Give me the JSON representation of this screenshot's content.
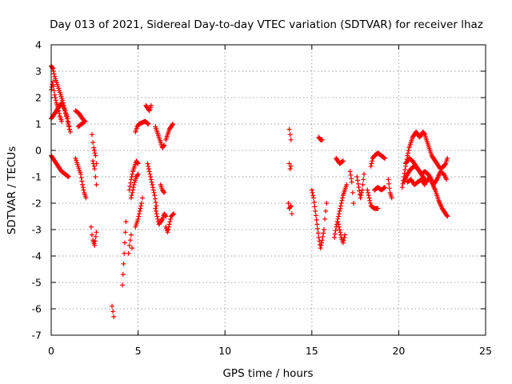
{
  "chart_data": {
    "type": "scatter",
    "title": "Day 013 of 2021, Sidereal Day-to-day VTEC variation (SDTVAR) for receiver lhaz",
    "xlabel": "GPS time / hours",
    "ylabel": "SDTVAR / TECUs",
    "xlim": [
      0,
      25
    ],
    "ylim": [
      -7,
      4
    ],
    "xticks": [
      "0",
      "5",
      "10",
      "15",
      "20",
      "25"
    ],
    "yticks": [
      "4",
      "3",
      "2",
      "1",
      "0",
      "-1",
      "-2",
      "-3",
      "-4",
      "-5",
      "-6",
      "-7"
    ],
    "grid": true,
    "marker": "plus",
    "color": "#ff0000",
    "segments": [
      [
        [
          0.0,
          3.2
        ],
        [
          0.1,
          3.1
        ],
        [
          0.2,
          2.8
        ],
        [
          0.35,
          2.5
        ],
        [
          0.5,
          2.2
        ],
        [
          0.65,
          1.9
        ],
        [
          0.8,
          1.5
        ],
        [
          0.95,
          1.2
        ],
        [
          1.05,
          0.8
        ]
      ],
      [
        [
          0.0,
          2.3
        ],
        [
          0.1,
          2.6
        ],
        [
          0.2,
          2.1
        ],
        [
          0.3,
          1.8
        ],
        [
          0.4,
          1.6
        ],
        [
          0.5,
          1.3
        ],
        [
          0.6,
          1.1
        ]
      ],
      [
        [
          0.0,
          1.2
        ],
        [
          0.2,
          1.4
        ],
        [
          0.4,
          1.6
        ],
        [
          0.6,
          1.8
        ],
        [
          0.8,
          1.5
        ],
        [
          0.95,
          1.1
        ],
        [
          1.1,
          0.7
        ]
      ],
      [
        [
          0.0,
          -0.2
        ],
        [
          0.2,
          -0.4
        ],
        [
          0.4,
          -0.6
        ],
        [
          0.6,
          -0.8
        ],
        [
          0.8,
          -0.9
        ],
        [
          1.0,
          -1.0
        ]
      ],
      [
        [
          1.4,
          1.5
        ],
        [
          1.6,
          1.4
        ],
        [
          1.8,
          1.2
        ],
        [
          1.95,
          1.1
        ],
        [
          1.55,
          0.9
        ]
      ],
      [
        [
          1.4,
          -0.3
        ],
        [
          1.55,
          -0.6
        ],
        [
          1.7,
          -0.9
        ],
        [
          1.8,
          -1.3
        ],
        [
          1.9,
          -1.6
        ],
        [
          2.0,
          -1.8
        ]
      ],
      [
        [
          2.35,
          0.6
        ],
        [
          2.4,
          0.3
        ],
        [
          2.45,
          0.1
        ],
        [
          2.55,
          -0.2
        ],
        [
          2.6,
          -0.5
        ]
      ],
      [
        [
          2.4,
          -0.4
        ],
        [
          2.5,
          -0.7
        ],
        [
          2.55,
          -1.0
        ],
        [
          2.6,
          -1.3
        ]
      ],
      [
        [
          2.3,
          -2.9
        ],
        [
          2.35,
          -3.2
        ],
        [
          2.4,
          -3.4
        ],
        [
          2.5,
          -3.6
        ],
        [
          2.6,
          -3.1
        ]
      ],
      [
        [
          3.5,
          -5.9
        ],
        [
          3.55,
          -6.1
        ],
        [
          3.6,
          -6.3
        ]
      ],
      [
        [
          4.1,
          -5.1
        ],
        [
          4.3,
          -2.7
        ]
      ],
      [
        [
          4.45,
          -3.9
        ],
        [
          4.5,
          -3.6
        ],
        [
          4.55,
          -3.4
        ],
        [
          4.6,
          -3.2
        ],
        [
          4.65,
          -3.7
        ]
      ],
      [
        [
          4.5,
          -1.5
        ],
        [
          4.6,
          -1.1
        ],
        [
          4.7,
          -0.8
        ],
        [
          4.8,
          -0.6
        ],
        [
          4.9,
          -0.4
        ],
        [
          5.0,
          -0.5
        ]
      ],
      [
        [
          4.6,
          -1.8
        ],
        [
          4.7,
          -1.5
        ],
        [
          4.8,
          -1.2
        ],
        [
          4.9,
          -1.0
        ],
        [
          5.0,
          -0.9
        ]
      ],
      [
        [
          4.85,
          -2.9
        ],
        [
          5.0,
          -2.6
        ],
        [
          5.1,
          -2.3
        ],
        [
          5.2,
          -2.0
        ],
        [
          5.25,
          -1.8
        ]
      ],
      [
        [
          4.85,
          0.7
        ],
        [
          4.95,
          0.9
        ],
        [
          5.05,
          1.0
        ],
        [
          5.4,
          1.1
        ],
        [
          5.6,
          1.0
        ]
      ],
      [
        [
          5.45,
          1.7
        ],
        [
          5.55,
          1.6
        ],
        [
          5.65,
          1.5
        ],
        [
          5.75,
          1.7
        ]
      ],
      [
        [
          5.55,
          -0.5
        ],
        [
          5.65,
          -0.8
        ],
        [
          5.75,
          -1.1
        ],
        [
          5.85,
          -1.4
        ],
        [
          5.95,
          -1.7
        ],
        [
          6.05,
          -2.1
        ]
      ],
      [
        [
          6.0,
          -2.2
        ],
        [
          6.1,
          -2.5
        ],
        [
          6.2,
          -2.8
        ],
        [
          6.4,
          -2.6
        ],
        [
          6.5,
          -2.4
        ],
        [
          6.6,
          -2.5
        ]
      ],
      [
        [
          6.0,
          0.9
        ],
        [
          6.1,
          0.7
        ],
        [
          6.2,
          0.5
        ],
        [
          6.3,
          0.3
        ],
        [
          6.4,
          0.1
        ],
        [
          6.5,
          0.2
        ]
      ],
      [
        [
          6.3,
          -1.3
        ],
        [
          6.4,
          -1.5
        ],
        [
          6.5,
          -1.6
        ]
      ],
      [
        [
          6.6,
          0.4
        ],
        [
          6.7,
          0.6
        ],
        [
          6.8,
          0.8
        ],
        [
          6.9,
          0.9
        ],
        [
          7.0,
          1.0
        ]
      ],
      [
        [
          6.6,
          -2.9
        ],
        [
          6.7,
          -3.1
        ],
        [
          6.8,
          -2.8
        ],
        [
          6.9,
          -2.5
        ],
        [
          7.05,
          -2.4
        ]
      ],
      [
        [
          13.7,
          0.8
        ],
        [
          13.75,
          0.6
        ],
        [
          13.8,
          0.4
        ]
      ],
      [
        [
          13.7,
          -0.5
        ],
        [
          13.75,
          -0.7
        ],
        [
          13.8,
          -0.6
        ]
      ],
      [
        [
          13.65,
          -2.0
        ],
        [
          13.7,
          -2.2
        ],
        [
          13.8,
          -2.1
        ],
        [
          13.85,
          -2.4
        ]
      ],
      [
        [
          15.0,
          -1.5
        ],
        [
          15.1,
          -1.8
        ],
        [
          15.2,
          -2.3
        ],
        [
          15.3,
          -2.8
        ],
        [
          15.4,
          -3.3
        ],
        [
          15.5,
          -3.7
        ],
        [
          15.6,
          -3.4
        ],
        [
          15.7,
          -3.0
        ],
        [
          15.75,
          -2.6
        ],
        [
          15.8,
          -2.3
        ],
        [
          15.85,
          -2.0
        ]
      ],
      [
        [
          15.4,
          0.5
        ],
        [
          15.5,
          0.4
        ],
        [
          15.6,
          0.4
        ]
      ],
      [
        [
          16.4,
          -0.3
        ],
        [
          16.6,
          -0.5
        ],
        [
          16.8,
          -0.4
        ]
      ],
      [
        [
          16.3,
          -3.3
        ],
        [
          16.4,
          -2.9
        ],
        [
          16.5,
          -2.6
        ],
        [
          16.6,
          -2.3
        ],
        [
          16.7,
          -2.0
        ],
        [
          16.8,
          -1.7
        ],
        [
          16.9,
          -1.5
        ],
        [
          17.0,
          -1.3
        ]
      ],
      [
        [
          16.5,
          -2.7
        ],
        [
          16.6,
          -3.0
        ],
        [
          16.7,
          -3.3
        ],
        [
          16.8,
          -3.5
        ],
        [
          16.9,
          -3.2
        ]
      ],
      [
        [
          17.2,
          -0.8
        ],
        [
          17.3,
          -1.2
        ],
        [
          17.35,
          -1.6
        ],
        [
          17.4,
          -2.0
        ]
      ],
      [
        [
          17.6,
          -1.0
        ],
        [
          17.7,
          -1.4
        ],
        [
          17.8,
          -1.8
        ],
        [
          17.9,
          -1.5
        ],
        [
          18.0,
          -0.9
        ]
      ],
      [
        [
          18.2,
          -1.5
        ],
        [
          18.3,
          -1.8
        ],
        [
          18.4,
          -2.1
        ],
        [
          18.6,
          -2.2
        ],
        [
          18.8,
          -2.2
        ]
      ],
      [
        [
          18.4,
          -0.6
        ],
        [
          18.5,
          -0.3
        ],
        [
          18.6,
          -0.2
        ],
        [
          18.8,
          -0.1
        ],
        [
          19.0,
          -0.2
        ],
        [
          19.2,
          -0.3
        ]
      ],
      [
        [
          18.6,
          -1.5
        ],
        [
          18.8,
          -1.4
        ],
        [
          19.0,
          -1.5
        ],
        [
          19.2,
          -1.4
        ]
      ],
      [
        [
          19.4,
          -1.1
        ],
        [
          19.5,
          -1.6
        ],
        [
          19.6,
          -1.8
        ]
      ],
      [
        [
          20.2,
          -1.4
        ],
        [
          20.3,
          -1.0
        ],
        [
          20.4,
          -0.6
        ],
        [
          20.5,
          -0.2
        ],
        [
          20.6,
          0.1
        ],
        [
          20.7,
          0.3
        ],
        [
          20.8,
          0.5
        ],
        [
          20.9,
          0.6
        ],
        [
          21.0,
          0.7
        ],
        [
          21.1,
          0.6
        ],
        [
          21.2,
          0.5
        ],
        [
          21.3,
          0.6
        ],
        [
          21.4,
          0.7
        ],
        [
          21.5,
          0.6
        ],
        [
          21.6,
          0.4
        ],
        [
          21.7,
          0.2
        ],
        [
          21.8,
          0.0
        ],
        [
          21.9,
          -0.2
        ],
        [
          22.0,
          -0.3
        ],
        [
          22.2,
          -0.5
        ],
        [
          22.4,
          -0.7
        ],
        [
          22.6,
          -0.6
        ],
        [
          22.7,
          -0.5
        ],
        [
          22.8,
          -0.3
        ]
      ],
      [
        [
          20.3,
          -1.2
        ],
        [
          20.5,
          -0.9
        ],
        [
          20.7,
          -0.7
        ],
        [
          20.9,
          -0.6
        ],
        [
          21.1,
          -0.7
        ],
        [
          21.3,
          -0.9
        ],
        [
          21.5,
          -0.8
        ],
        [
          21.7,
          -0.9
        ],
        [
          21.9,
          -1.2
        ],
        [
          22.1,
          -1.5
        ],
        [
          22.3,
          -1.9
        ],
        [
          22.5,
          -2.2
        ],
        [
          22.7,
          -2.4
        ],
        [
          22.8,
          -2.5
        ]
      ],
      [
        [
          20.4,
          -0.5
        ],
        [
          20.6,
          -0.3
        ],
        [
          20.8,
          -0.4
        ],
        [
          21.0,
          -0.6
        ],
        [
          21.2,
          -0.8
        ],
        [
          21.4,
          -1.0
        ],
        [
          21.6,
          -1.2
        ],
        [
          21.8,
          -1.0
        ],
        [
          22.0,
          -1.3
        ],
        [
          22.2,
          -1.1
        ],
        [
          22.4,
          -0.8
        ],
        [
          22.6,
          -0.9
        ],
        [
          22.75,
          -1.1
        ]
      ],
      [
        [
          20.5,
          -1.2
        ],
        [
          20.7,
          -1.1
        ],
        [
          20.9,
          -1.3
        ],
        [
          21.1,
          -1.2
        ],
        [
          21.3,
          -1.1
        ],
        [
          21.5,
          -1.3
        ]
      ]
    ]
  }
}
